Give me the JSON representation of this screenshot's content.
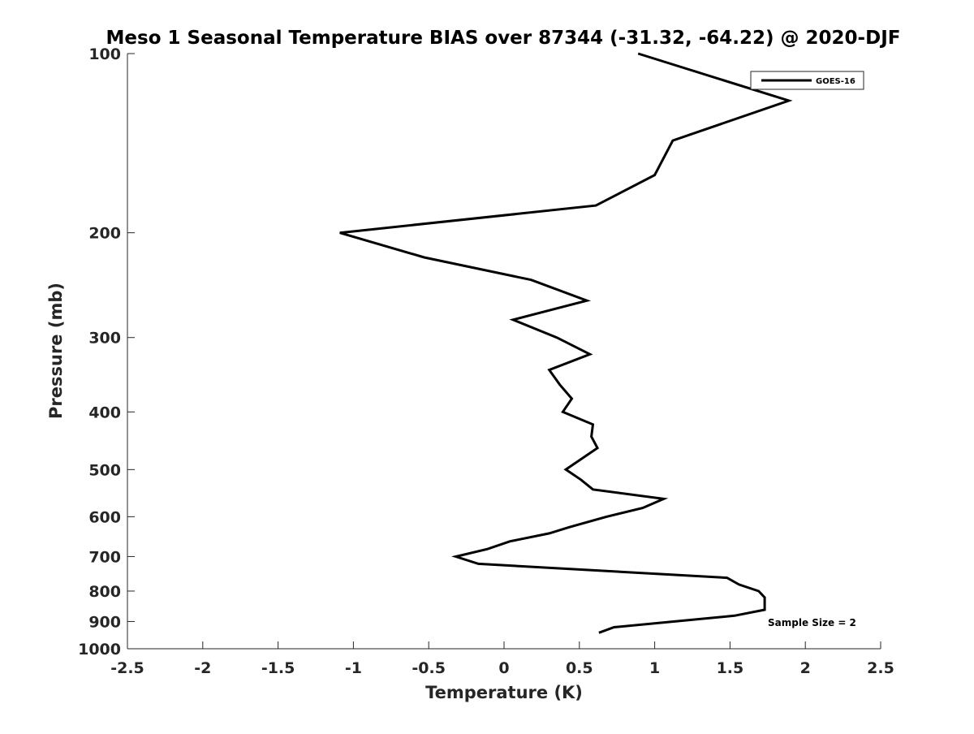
{
  "chart_data": {
    "type": "line",
    "title": "Meso 1 Seasonal Temperature BIAS over 87344 (-31.32, -64.22) @ 2020-DJF",
    "xlabel": "Temperature (K)",
    "ylabel": "Pressure (mb)",
    "xlim": [
      -2.5,
      2.5
    ],
    "ylim": [
      100,
      1000
    ],
    "yscale": "log",
    "y_reversed": true,
    "xticks": [
      "-2.5",
      "-2",
      "-1.5",
      "-1",
      "-0.5",
      "0",
      "0.5",
      "1",
      "1.5",
      "2",
      "2.5"
    ],
    "xtick_values": [
      -2.5,
      -2,
      -1.5,
      -1,
      -0.5,
      0,
      0.5,
      1,
      1.5,
      2,
      2.5
    ],
    "yticks": [
      "100",
      "200",
      "300",
      "400",
      "500",
      "600",
      "700",
      "800",
      "900",
      "1000"
    ],
    "ytick_values": [
      100,
      200,
      300,
      400,
      500,
      600,
      700,
      800,
      900,
      1000
    ],
    "grid": false,
    "legend": {
      "placement": "top-right",
      "entries": [
        "GOES-16"
      ]
    },
    "annotation": "Sample Size = 2",
    "series": [
      {
        "name": "GOES-16",
        "color": "#000000",
        "x": [
          0.89,
          1.89,
          1.12,
          1.0,
          0.61,
          -1.09,
          -0.53,
          0.18,
          0.55,
          0.06,
          0.35,
          0.57,
          0.3,
          0.37,
          0.45,
          0.39,
          0.59,
          0.58,
          0.62,
          0.41,
          0.51,
          0.59,
          1.06,
          0.92,
          0.68,
          0.43,
          0.3,
          0.04,
          -0.11,
          -0.32,
          -0.17,
          1.48,
          1.56,
          1.69,
          1.73,
          1.73,
          1.53,
          0.73,
          0.63
        ],
        "y": [
          100,
          120,
          140,
          160,
          180,
          200,
          220,
          240,
          260,
          280,
          300,
          320,
          340,
          360,
          380,
          400,
          420,
          440,
          460,
          500,
          520,
          540,
          560,
          580,
          600,
          625,
          640,
          660,
          680,
          700,
          720,
          760,
          780,
          800,
          820,
          860,
          880,
          920,
          940
        ]
      }
    ]
  }
}
